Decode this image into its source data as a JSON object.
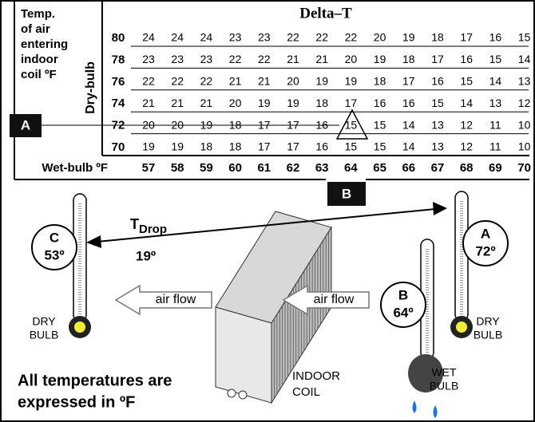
{
  "table": {
    "title": "Delta–T",
    "corner_label": [
      "Temp.",
      "of air",
      "entering",
      "indoor",
      "coil ºF"
    ],
    "row_axis_label": "Dry-bulb",
    "column_axis_label": "Wet-bulb ºF",
    "columns": [
      57,
      58,
      59,
      60,
      61,
      62,
      63,
      64,
      65,
      66,
      67,
      68,
      69,
      70
    ],
    "rows": [
      {
        "dry_bulb": 80,
        "values": [
          24,
          24,
          24,
          23,
          23,
          22,
          22,
          22,
          20,
          19,
          18,
          17,
          16,
          15
        ]
      },
      {
        "dry_bulb": 78,
        "values": [
          23,
          23,
          23,
          22,
          22,
          21,
          21,
          20,
          19,
          18,
          17,
          16,
          15,
          14
        ]
      },
      {
        "dry_bulb": 76,
        "values": [
          22,
          22,
          22,
          21,
          21,
          20,
          19,
          19,
          18,
          17,
          16,
          15,
          14,
          13
        ]
      },
      {
        "dry_bulb": 74,
        "values": [
          21,
          21,
          21,
          20,
          19,
          19,
          18,
          17,
          16,
          16,
          15,
          14,
          13,
          12
        ]
      },
      {
        "dry_bulb": 72,
        "values": [
          20,
          20,
          19,
          18,
          17,
          17,
          16,
          15,
          15,
          14,
          13,
          12,
          11,
          10
        ]
      },
      {
        "dry_bulb": 70,
        "values": [
          19,
          19,
          18,
          18,
          17,
          17,
          16,
          15,
          15,
          14,
          13,
          12,
          11,
          10
        ]
      }
    ],
    "row_marker": "A",
    "column_marker": "B"
  },
  "diagram": {
    "thermometers": [
      {
        "label": "C",
        "reading": "53º",
        "caption": [
          "DRY",
          "BULB"
        ]
      },
      {
        "label": "A",
        "reading": "72º",
        "caption": [
          "DRY",
          "BULB"
        ]
      },
      {
        "label": "B",
        "reading": "64º",
        "caption": [
          "WET",
          "BULB"
        ]
      }
    ],
    "temperature_drop": {
      "symbol": "T",
      "subscript": "Drop",
      "value": "19º"
    },
    "air_flow": [
      "air flow",
      "air flow"
    ],
    "coil_label": [
      "INDOOR",
      "COIL"
    ],
    "note": [
      "All temperatures are",
      "expressed in ºF"
    ]
  }
}
